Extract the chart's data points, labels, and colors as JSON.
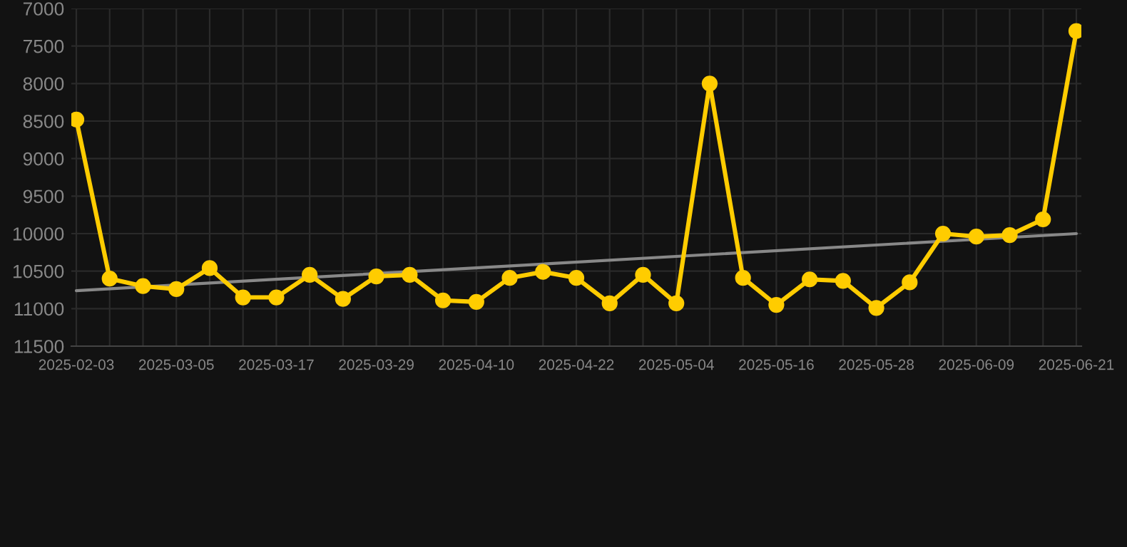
{
  "chart_data": {
    "type": "line",
    "categories": [
      "2025-02-03",
      null,
      null,
      "2025-03-05",
      null,
      null,
      "2025-03-17",
      null,
      null,
      "2025-03-29",
      null,
      null,
      "2025-04-10",
      null,
      null,
      "2025-04-22",
      null,
      null,
      "2025-05-04",
      null,
      null,
      "2025-05-16",
      null,
      null,
      "2025-05-28",
      null,
      null,
      "2025-06-09",
      null,
      null,
      "2025-06-21"
    ],
    "series": [
      {
        "color": "#ffcc00",
        "marker": "circle",
        "values": [
          8480,
          10600,
          10700,
          10740,
          10460,
          10850,
          10850,
          10550,
          10870,
          10570,
          10550,
          10890,
          10910,
          10590,
          10510,
          10590,
          10930,
          10550,
          10930,
          8000,
          10590,
          10950,
          10610,
          10630,
          10990,
          10650,
          10000,
          10040,
          10020,
          9810,
          7300
        ]
      },
      {
        "type": "line",
        "color": "#888888",
        "marker": "none",
        "values": [
          10760,
          null,
          null,
          null,
          null,
          null,
          null,
          null,
          null,
          null,
          null,
          null,
          null,
          null,
          null,
          null,
          null,
          null,
          null,
          null,
          null,
          null,
          null,
          null,
          null,
          null,
          null,
          null,
          null,
          null,
          10000
        ]
      }
    ],
    "ylim": [
      11500,
      7000
    ],
    "yticks": [
      7000,
      7500,
      8000,
      8500,
      9000,
      9500,
      10000,
      10500,
      11000,
      11500
    ],
    "grid": true,
    "legend": false
  }
}
